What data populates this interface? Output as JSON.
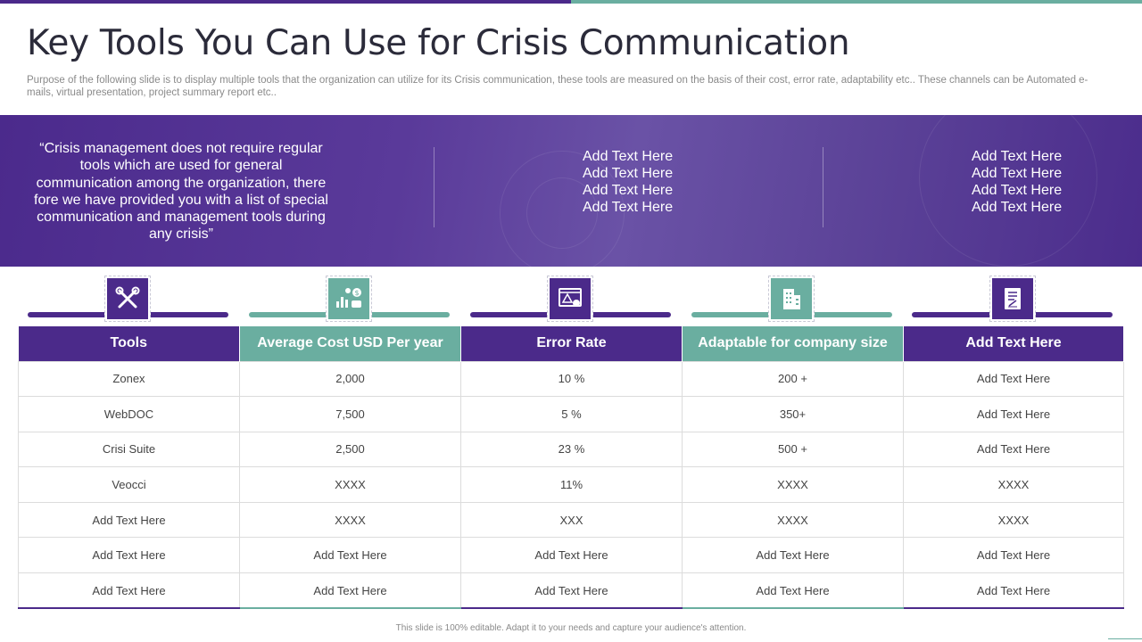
{
  "title": "Key Tools You Can Use for Crisis Communication",
  "subtitle": "Purpose of the following slide is to display multiple tools that the organization can utilize for its Crisis communication, these tools are measured on the basis of their cost, error rate, adaptability etc.. These channels can be Automated e-mails, virtual presentation, project summary report etc..",
  "banner": {
    "quote": "“Crisis management does not require regular tools which are used for general communication among the organization, there fore we have provided you with a list of special communication and management tools during any crisis”",
    "column2": [
      "Add Text Here",
      "Add Text Here",
      "Add Text Here",
      "Add Text Here"
    ],
    "column3": [
      "Add Text Here",
      "Add Text Here",
      "Add Text Here",
      "Add Text Here"
    ]
  },
  "icons": [
    "tools-icon",
    "cost-analytics-icon",
    "warning-screen-icon",
    "building-icon",
    "document-icon"
  ],
  "colors": {
    "purple": "#4b2a8a",
    "teal": "#6aaea0"
  },
  "table": {
    "headers": [
      "Tools",
      "Average Cost USD Per year",
      "Error Rate",
      "Adaptable for company size",
      "Add Text Here"
    ],
    "rows": [
      [
        "Zonex",
        "2,000",
        "10 %",
        "200 +",
        "Add Text Here"
      ],
      [
        "WebDOC",
        "7,500",
        "5 %",
        "350+",
        "Add Text Here"
      ],
      [
        "Crisi Suite",
        "2,500",
        "23 %",
        "500 +",
        "Add Text Here"
      ],
      [
        "Veocci",
        "XXXX",
        "11%",
        "XXXX",
        "XXXX"
      ],
      [
        "Add Text Here",
        "XXXX",
        "XXX",
        "XXXX",
        "XXXX"
      ],
      [
        "Add Text Here",
        "Add Text Here",
        "Add Text Here",
        "Add Text Here",
        "Add Text Here"
      ],
      [
        "Add Text Here",
        "Add Text Here",
        "Add Text Here",
        "Add Text Here",
        "Add Text Here"
      ]
    ]
  },
  "footer": "This slide is 100% editable. Adapt it to your needs and capture your audience's attention."
}
